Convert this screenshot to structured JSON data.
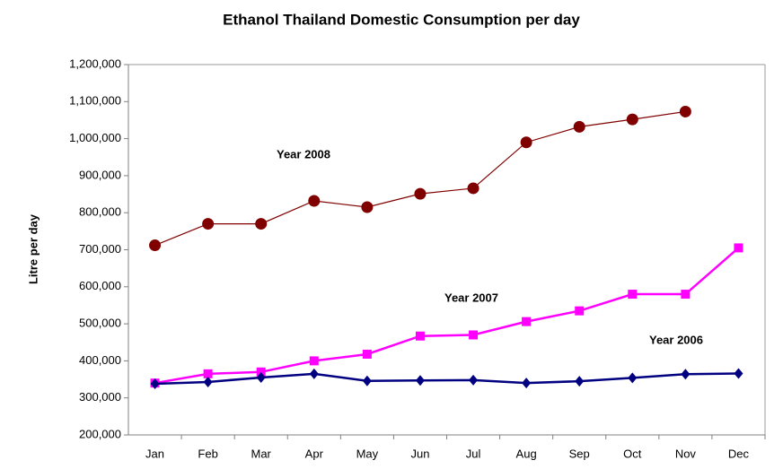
{
  "chart_data": {
    "type": "line",
    "title": "Ethanol Thailand Domestic Consumption per day",
    "y_label": "Litre per day",
    "categories": [
      "Jan",
      "Feb",
      "Mar",
      "Apr",
      "May",
      "Jun",
      "Jul",
      "Aug",
      "Sep",
      "Oct",
      "Nov",
      "Dec"
    ],
    "series": [
      {
        "name": "Year 2008",
        "color": "#800000",
        "marker": "circle",
        "values": [
          712000,
          770000,
          770000,
          832000,
          815000,
          851000,
          866000,
          990000,
          1032000,
          1052000,
          1073000,
          null
        ]
      },
      {
        "name": "Year 2007",
        "color": "#ff00ff",
        "marker": "square",
        "values": [
          340000,
          365000,
          370000,
          400000,
          418000,
          467000,
          470000,
          506000,
          535000,
          580000,
          580000,
          705000
        ]
      },
      {
        "name": "Year 2006",
        "color": "#000080",
        "marker": "diamond",
        "values": [
          338000,
          343000,
          355000,
          365000,
          346000,
          347000,
          348000,
          340000,
          345000,
          354000,
          364000,
          366000
        ]
      }
    ],
    "ylim": [
      200000,
      1200000
    ],
    "yticks": [
      {
        "value": 200000,
        "label": "200,000"
      },
      {
        "value": 300000,
        "label": "300,000"
      },
      {
        "value": 400000,
        "label": "400,000"
      },
      {
        "value": 500000,
        "label": "500,000"
      },
      {
        "value": 600000,
        "label": "600,000"
      },
      {
        "value": 700000,
        "label": "700,000"
      },
      {
        "value": 800000,
        "label": "800,000"
      },
      {
        "value": 900000,
        "label": "900,000"
      },
      {
        "value": 1000000,
        "label": "1,000,000"
      },
      {
        "value": 1100000,
        "label": "1,100,000"
      },
      {
        "value": 1200000,
        "label": "1,200,000"
      }
    ],
    "grid": false
  }
}
